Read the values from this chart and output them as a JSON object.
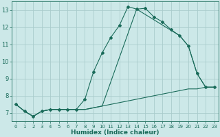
{
  "xlabel": "Humidex (Indice chaleur)",
  "background_color": "#cce8e8",
  "grid_color": "#aacccc",
  "line_color": "#1a6b5a",
  "xlim": [
    -0.5,
    23.5
  ],
  "ylim": [
    6.5,
    13.5
  ],
  "xticks": [
    0,
    1,
    2,
    3,
    4,
    5,
    6,
    7,
    8,
    9,
    10,
    11,
    12,
    13,
    14,
    15,
    16,
    17,
    18,
    19,
    20,
    21,
    22,
    23
  ],
  "yticks": [
    7,
    8,
    9,
    10,
    11,
    12,
    13
  ],
  "series1_x": [
    0,
    1,
    2,
    3,
    4,
    5,
    6,
    7,
    8,
    9,
    10,
    11,
    12,
    13,
    14,
    15,
    16,
    17,
    18,
    19,
    20,
    21,
    22,
    23
  ],
  "series1_y": [
    7.5,
    7.1,
    6.8,
    7.1,
    7.2,
    7.2,
    7.2,
    7.2,
    7.8,
    9.4,
    10.5,
    11.4,
    12.1,
    13.2,
    13.05,
    13.1,
    12.6,
    12.3,
    11.85,
    11.5,
    10.9,
    9.3,
    8.5,
    8.5
  ],
  "series2_x": [
    0,
    1,
    2,
    3,
    4,
    5,
    6,
    7,
    8,
    9,
    10,
    11,
    12,
    13,
    14,
    15,
    16,
    17,
    18,
    19,
    20,
    21,
    22,
    23
  ],
  "series2_y": [
    7.5,
    7.1,
    6.8,
    7.1,
    7.2,
    7.2,
    7.2,
    7.2,
    7.2,
    7.3,
    7.4,
    7.5,
    7.6,
    7.7,
    7.8,
    7.9,
    8.0,
    8.1,
    8.2,
    8.3,
    8.4,
    8.4,
    8.5,
    8.5
  ],
  "series3_x": [
    0,
    1,
    2,
    3,
    4,
    5,
    6,
    7,
    8,
    9,
    10,
    14,
    19,
    20,
    21,
    22,
    23
  ],
  "series3_y": [
    7.5,
    7.1,
    6.8,
    7.1,
    7.2,
    7.2,
    7.2,
    7.2,
    7.2,
    7.3,
    7.4,
    13.05,
    11.5,
    10.9,
    9.3,
    8.5,
    8.5
  ]
}
